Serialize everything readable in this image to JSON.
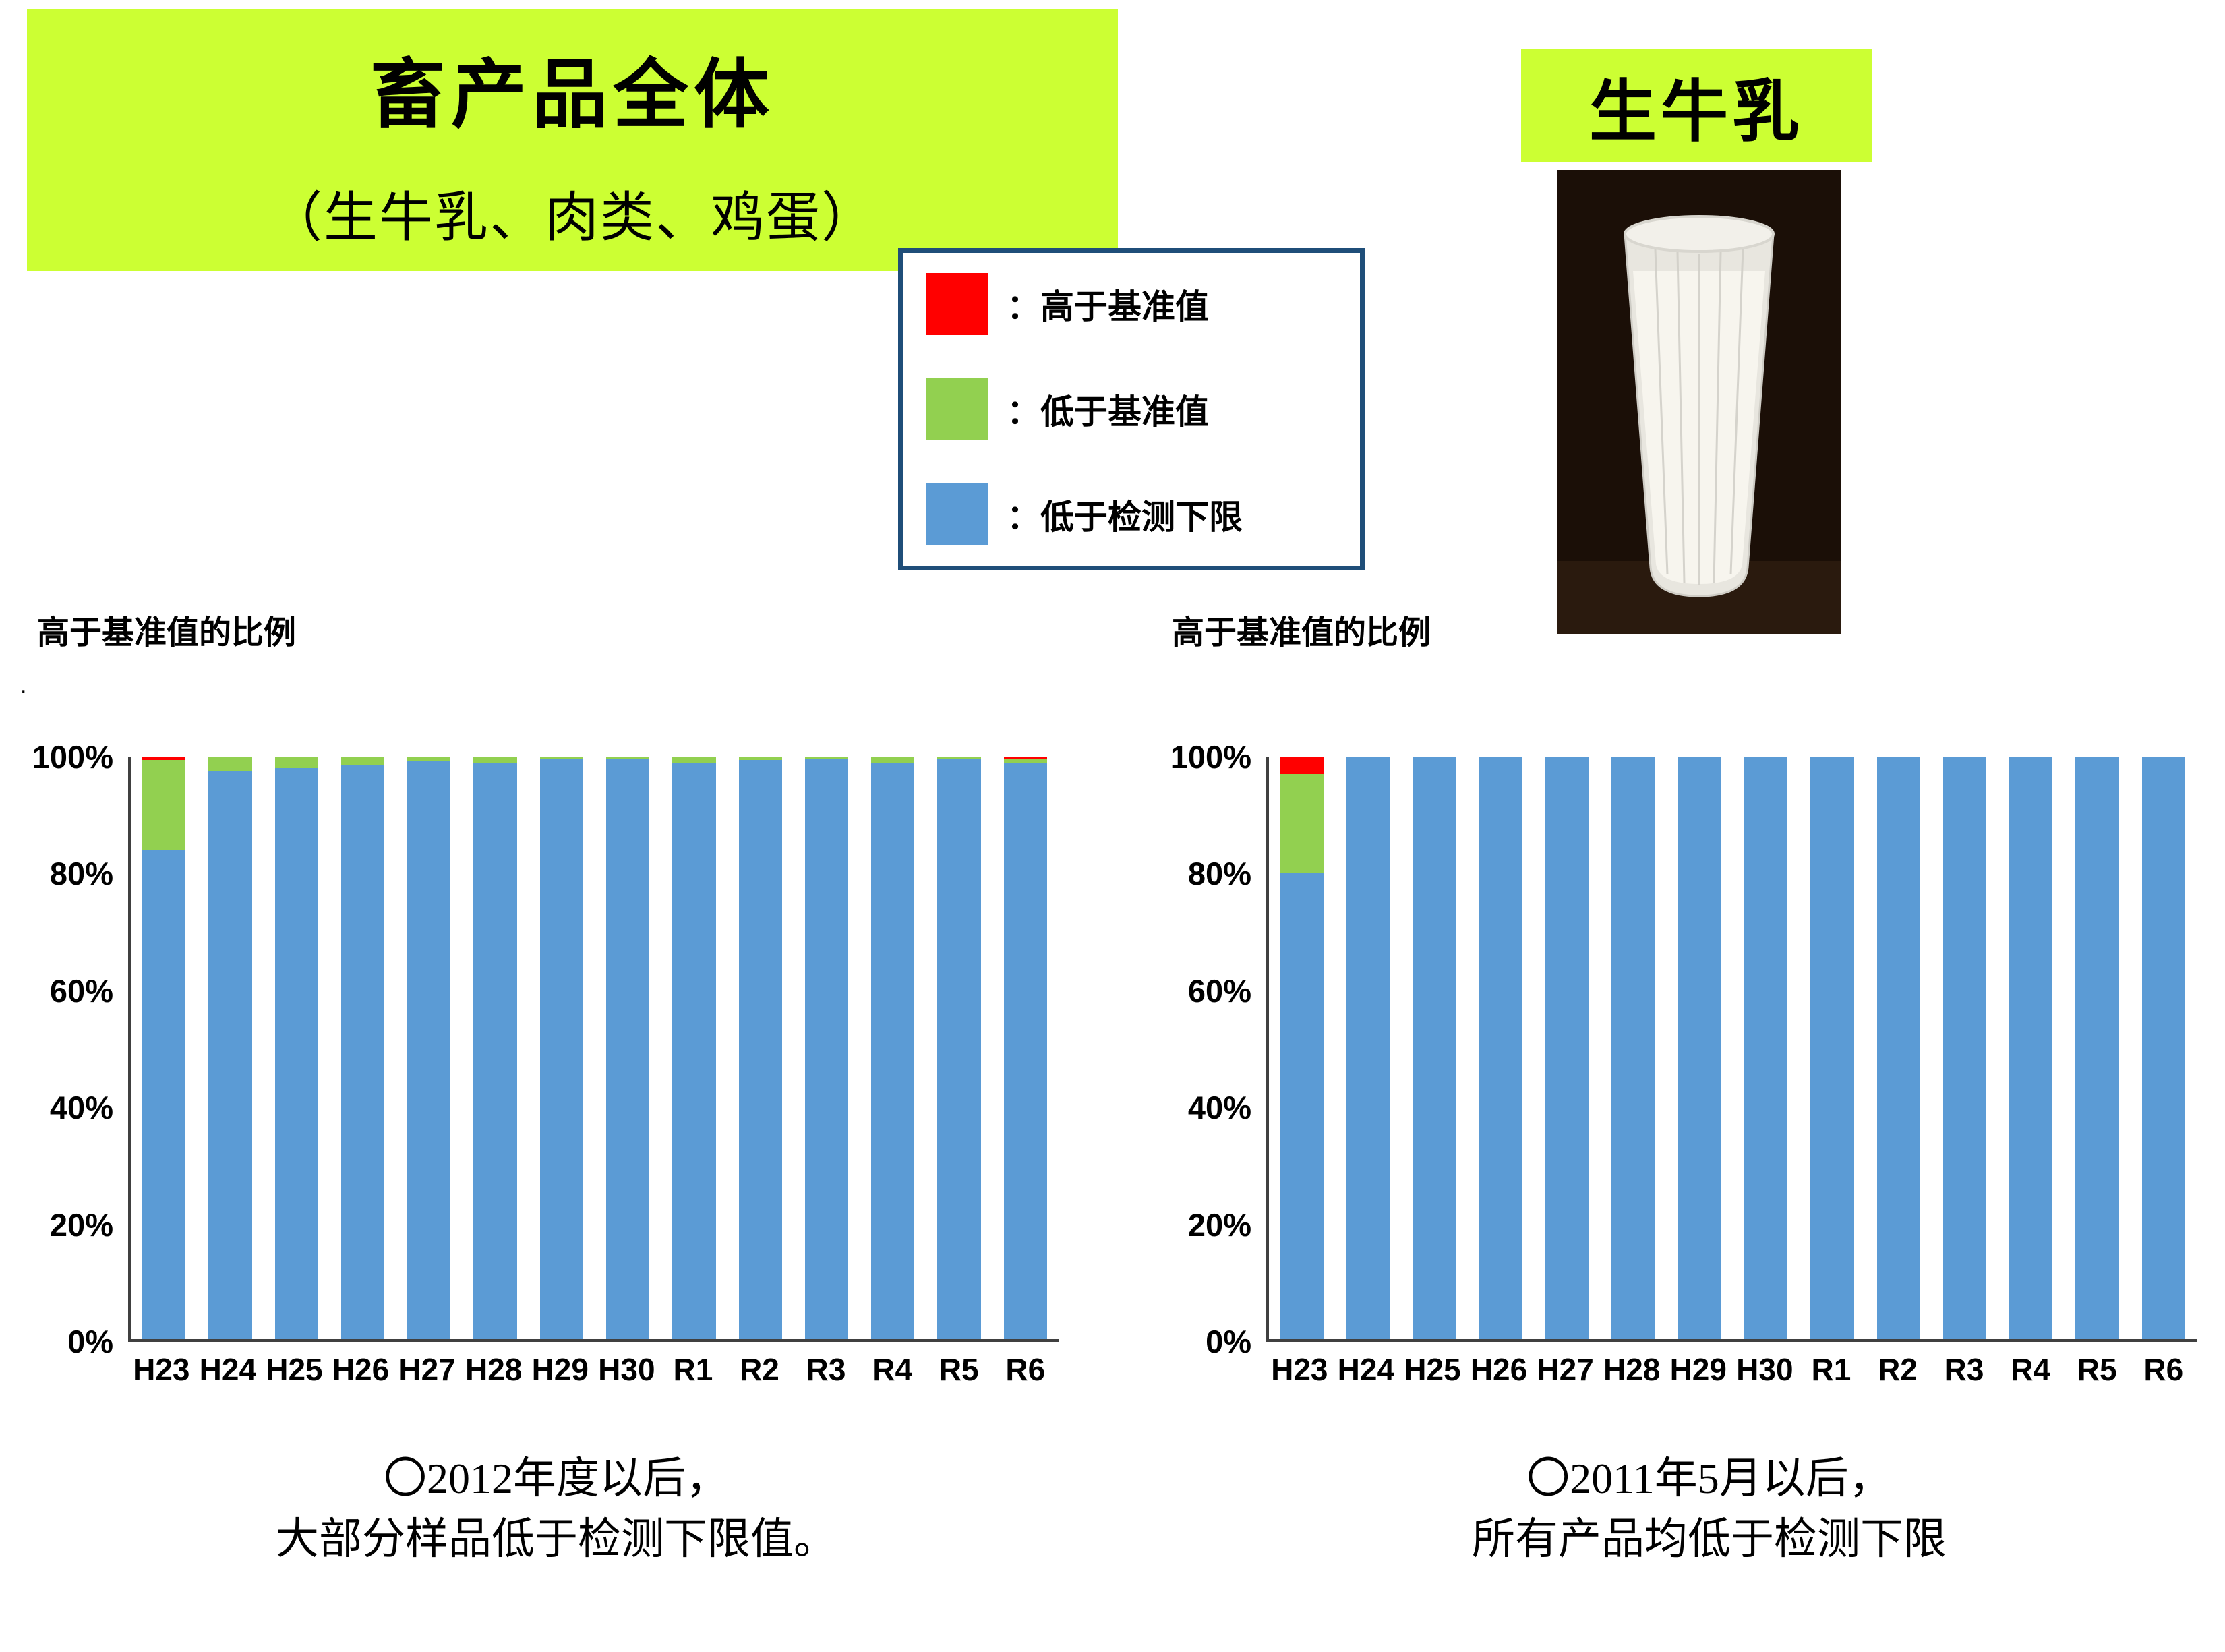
{
  "page": {
    "title": "畜产品全体",
    "subtitle": "（生牛乳、肉类、鸡蛋）",
    "right_box_label": "生牛乳",
    "accent_color": "#ccff33"
  },
  "legend": {
    "items": [
      {
        "label": "：高于基准值",
        "color": "#ff0000",
        "name": "above-standard-swatch"
      },
      {
        "label": "：低于基准值",
        "color": "#92d050",
        "name": "below-standard-swatch"
      },
      {
        "label": "：低于检测下限",
        "color": "#5b9bd5",
        "name": "below-detection-limit-swatch"
      }
    ]
  },
  "chart_data": [
    {
      "type": "bar",
      "stacked": true,
      "title": "高于基准值的比例",
      "categories": [
        "H23",
        "H24",
        "H25",
        "H26",
        "H27",
        "H28",
        "H29",
        "H30",
        "R1",
        "R2",
        "R3",
        "R4",
        "R5",
        "R6"
      ],
      "series": [
        {
          "name": "低于检测下限",
          "color": "#5b9bd5",
          "values": [
            84,
            97.5,
            98,
            98.5,
            99.3,
            99,
            99.5,
            99.6,
            99,
            99.4,
            99.5,
            99,
            99.6,
            98.9
          ]
        },
        {
          "name": "低于基准值",
          "color": "#92d050",
          "values": [
            15.4,
            2.5,
            2,
            1.5,
            0.7,
            1,
            0.5,
            0.4,
            1,
            0.6,
            0.5,
            1,
            0.4,
            0.7
          ]
        },
        {
          "name": "高于基准值",
          "color": "#ff0000",
          "values": [
            0.6,
            0,
            0,
            0,
            0,
            0,
            0,
            0,
            0,
            0,
            0,
            0,
            0,
            0.4
          ]
        }
      ],
      "ylim": [
        0,
        100
      ],
      "y_ticks": [
        "100%",
        "80%",
        "60%",
        "40%",
        "20%",
        "0%"
      ],
      "grid": false,
      "legend_position": "none"
    },
    {
      "type": "bar",
      "stacked": true,
      "title": "高于基准值的比例",
      "categories": [
        "H23",
        "H24",
        "H25",
        "H26",
        "H27",
        "H28",
        "H29",
        "H30",
        "R1",
        "R2",
        "R3",
        "R4",
        "R5",
        "R6"
      ],
      "series": [
        {
          "name": "低于检测下限",
          "color": "#5b9bd5",
          "values": [
            80,
            100,
            100,
            100,
            100,
            100,
            100,
            100,
            100,
            100,
            100,
            100,
            100,
            100
          ]
        },
        {
          "name": "低于基准值",
          "color": "#92d050",
          "values": [
            17,
            0,
            0,
            0,
            0,
            0,
            0,
            0,
            0,
            0,
            0,
            0,
            0,
            0
          ]
        },
        {
          "name": "高于基准值",
          "color": "#ff0000",
          "values": [
            3,
            0,
            0,
            0,
            0,
            0,
            0,
            0,
            0,
            0,
            0,
            0,
            0,
            0
          ]
        }
      ],
      "ylim": [
        0,
        100
      ],
      "y_ticks": [
        "100%",
        "80%",
        "60%",
        "40%",
        "20%",
        "0%"
      ],
      "grid": false,
      "legend_position": "none"
    }
  ],
  "captions": {
    "left": [
      "〇2012年度以后，",
      "大部分样品低于检测下限值。"
    ],
    "right": [
      "〇2011年5月以后，",
      "所有产品均低于检测下限"
    ]
  },
  "stray_mark": "."
}
